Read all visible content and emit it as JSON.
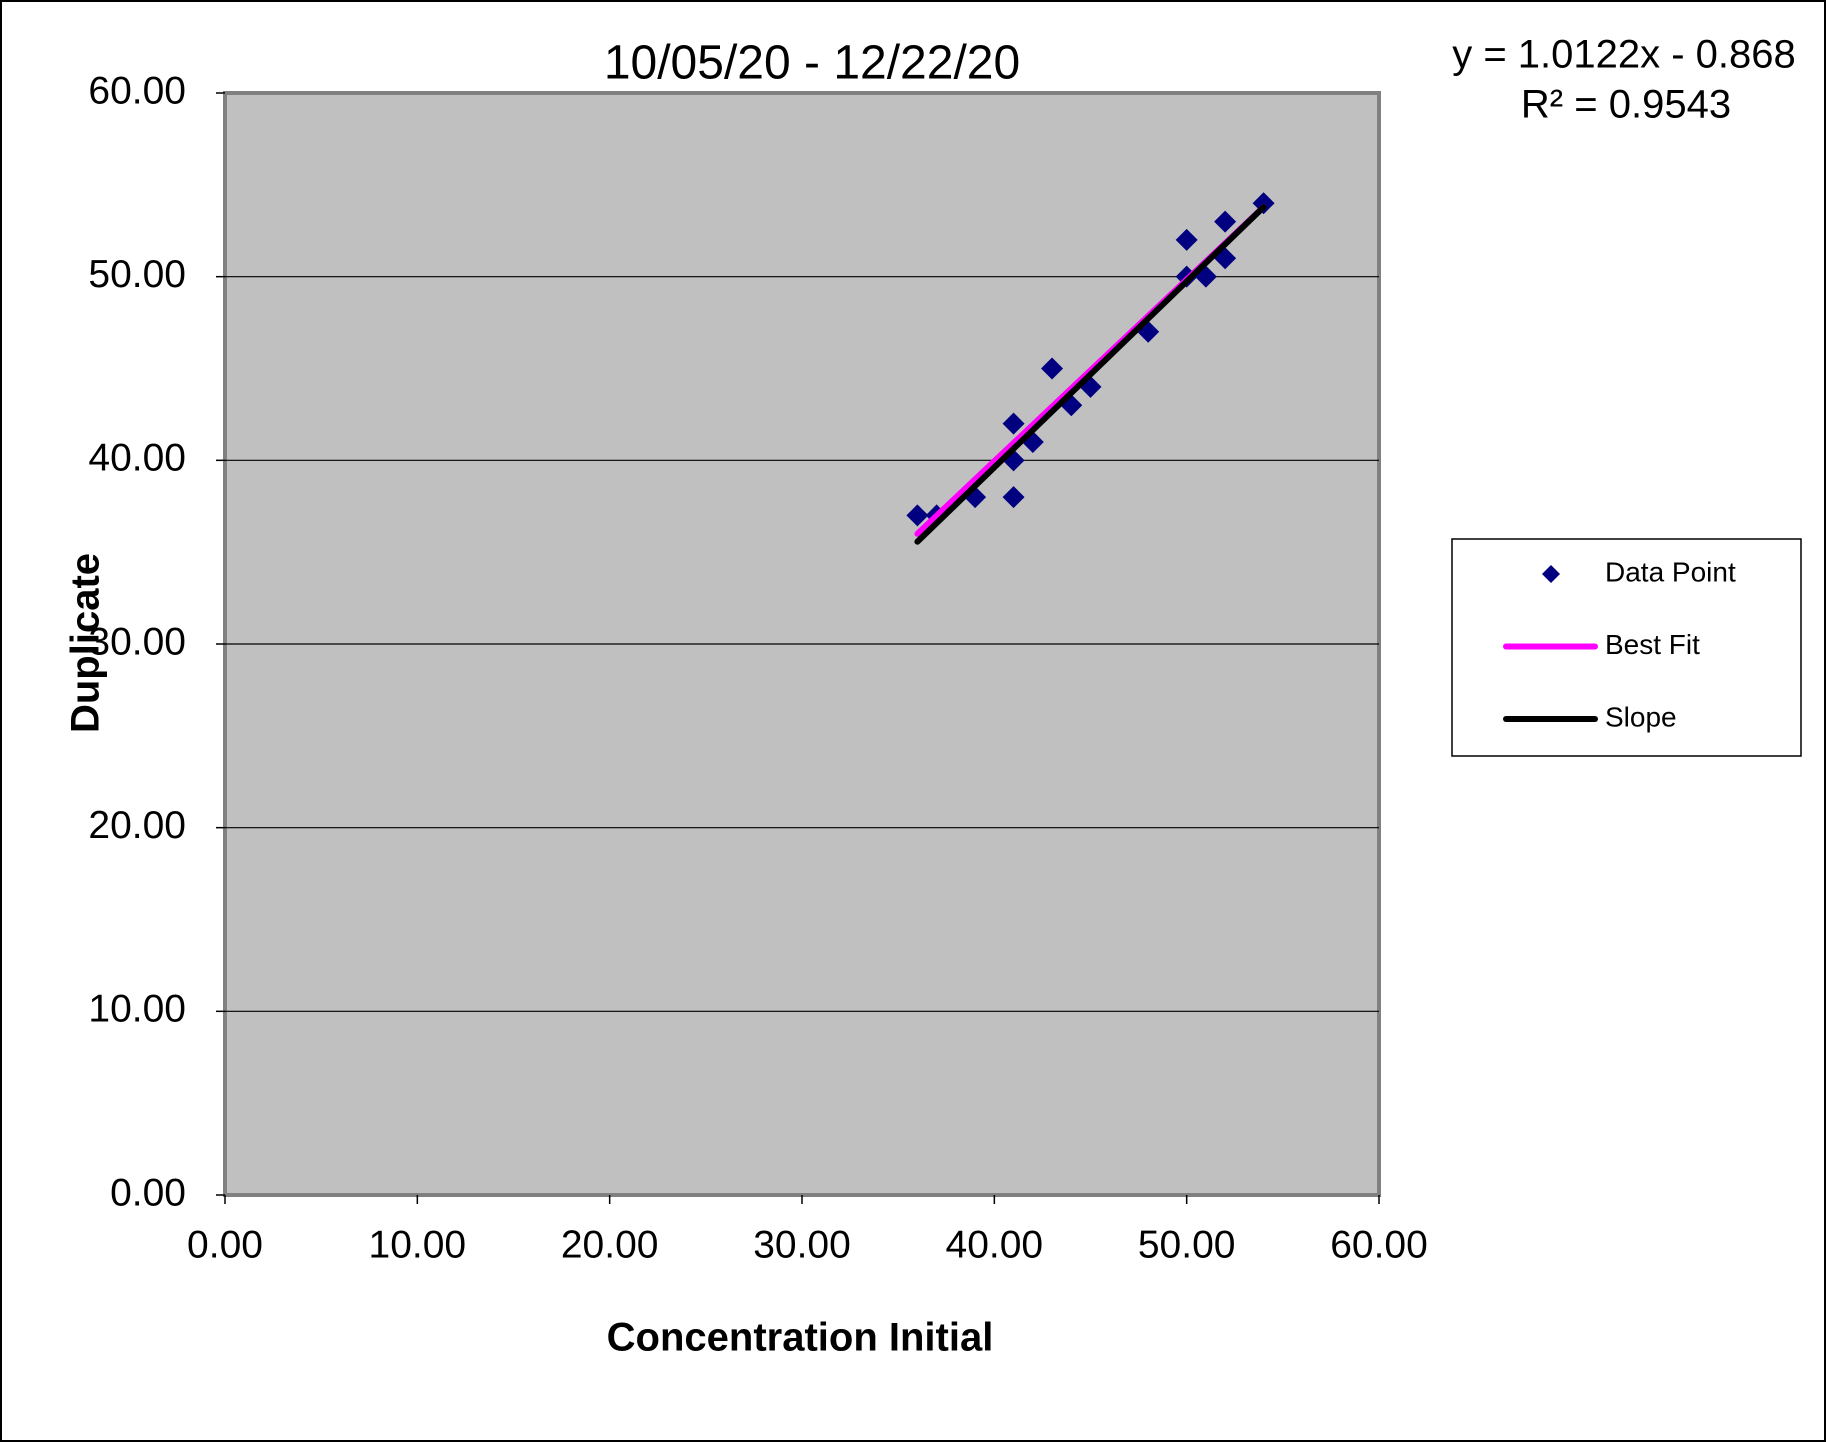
{
  "chart_data": {
    "type": "scatter",
    "title": "10/05/20 - 12/22/20",
    "xlabel": "Concentration Initial",
    "ylabel": "Duplicate",
    "annotations": [
      "y = 1.0122x - 0.868",
      "R² = 0.9543"
    ],
    "xlim": [
      0,
      60
    ],
    "ylim": [
      0,
      60
    ],
    "xticks": [
      {
        "value": 0,
        "label": "0.00"
      },
      {
        "value": 10,
        "label": "10.00"
      },
      {
        "value": 20,
        "label": "20.00"
      },
      {
        "value": 30,
        "label": "30.00"
      },
      {
        "value": 40,
        "label": "40.00"
      },
      {
        "value": 50,
        "label": "50.00"
      },
      {
        "value": 60,
        "label": "60.00"
      }
    ],
    "yticks": [
      {
        "value": 0,
        "label": "0.00"
      },
      {
        "value": 10,
        "label": "10.00"
      },
      {
        "value": 20,
        "label": "20.00"
      },
      {
        "value": 30,
        "label": "30.00"
      },
      {
        "value": 40,
        "label": "40.00"
      },
      {
        "value": 50,
        "label": "50.00"
      },
      {
        "value": 60,
        "label": "60.00"
      }
    ],
    "grid": true,
    "legend": "right",
    "series": [
      {
        "name": "Data Point",
        "color": "#000080",
        "style": "markers",
        "x": [
          36,
          37,
          39,
          41,
          41,
          41,
          42,
          43,
          44,
          45,
          48,
          50,
          50,
          51,
          52,
          52,
          54
        ],
        "values": [
          37,
          37,
          38,
          42,
          40,
          38,
          41,
          45,
          43,
          44,
          47,
          52,
          50,
          50,
          53,
          51,
          54
        ]
      },
      {
        "name": "Best Fit",
        "color": "#ff00ff",
        "style": "line",
        "x": [
          36,
          54
        ],
        "values": [
          36.0,
          53.8
        ]
      },
      {
        "name": "Slope",
        "color": "#000000",
        "style": "line",
        "x": [
          36,
          54
        ],
        "values": [
          35.57,
          53.79
        ]
      }
    ]
  }
}
